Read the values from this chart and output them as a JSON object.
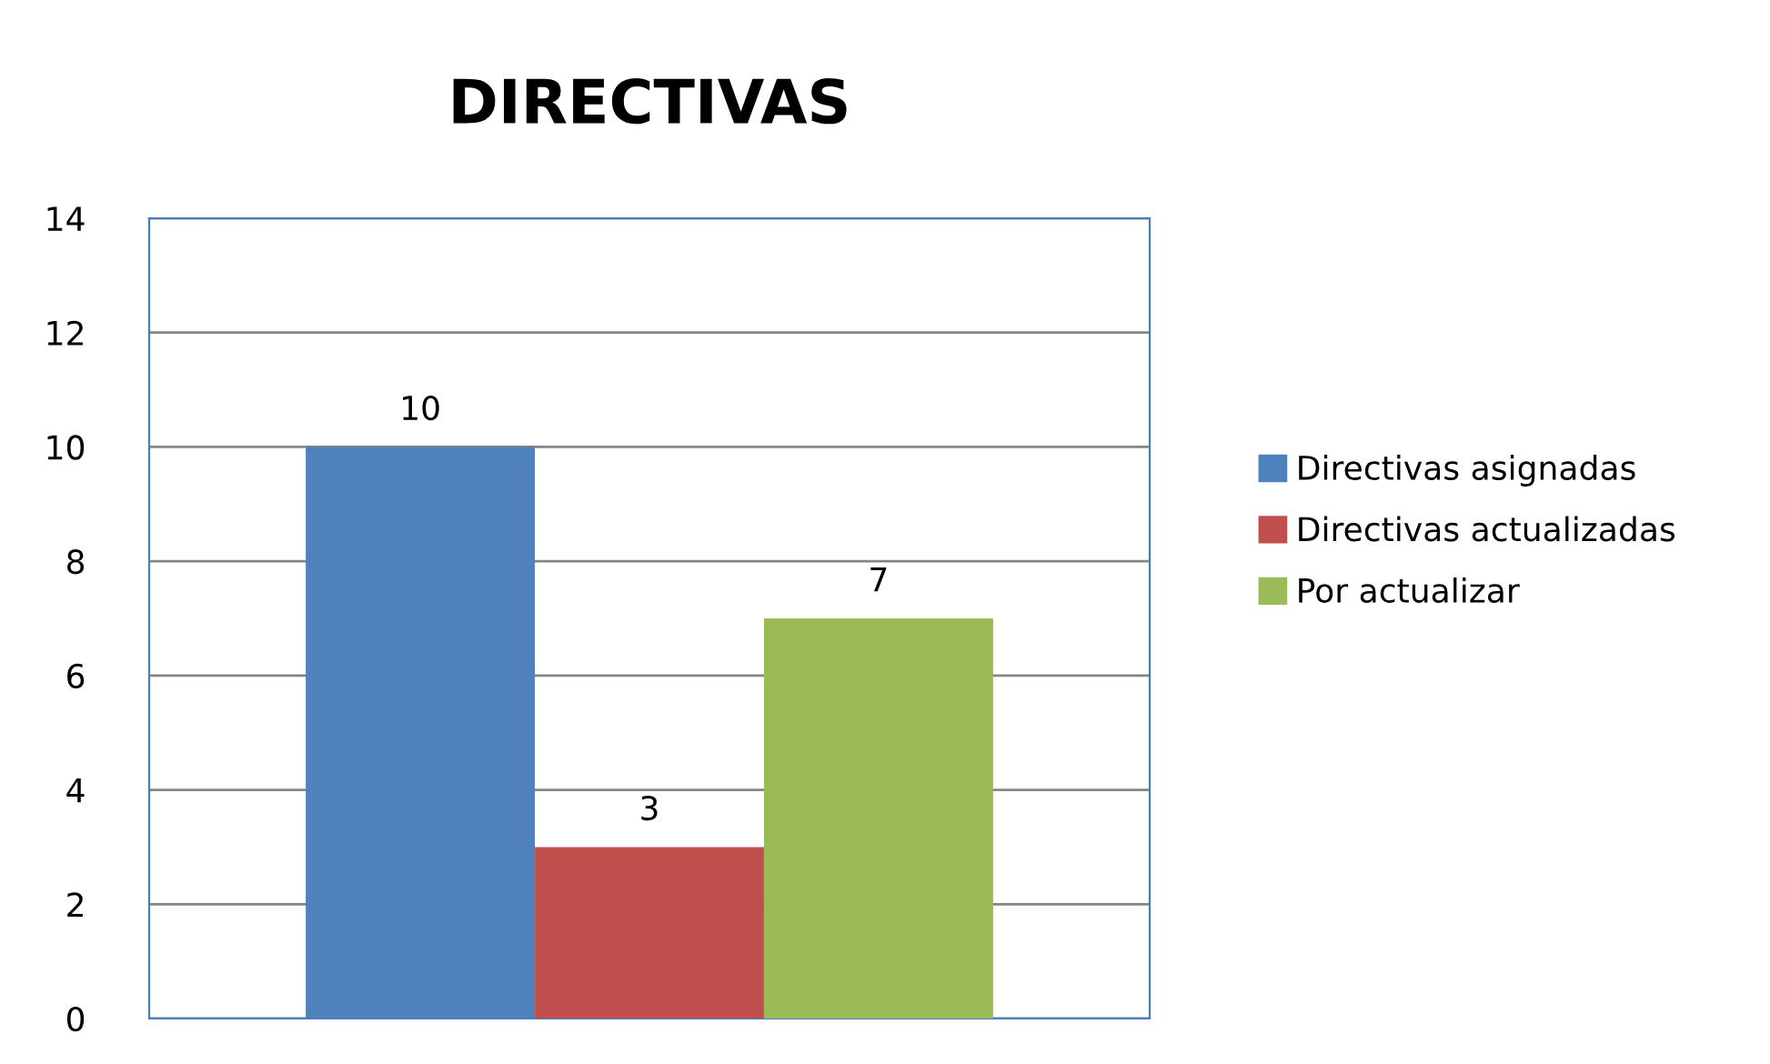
{
  "chart_data": {
    "type": "bar",
    "title": "DIRECTIVAS",
    "categories": [
      null
    ],
    "series": [
      {
        "name": "Directivas asignadas",
        "color": "#4f81bd",
        "values": [
          10
        ]
      },
      {
        "name": "Directivas actualizadas",
        "color": "#c0504d",
        "values": [
          3
        ]
      },
      {
        "name": "Por actualizar",
        "color": "#9bbb59",
        "values": [
          7
        ]
      }
    ],
    "ylim": [
      0,
      14
    ],
    "yticks": [
      0,
      2,
      4,
      6,
      8,
      10,
      12,
      14
    ],
    "grid": "y",
    "legend": "right",
    "data_labels": true
  }
}
